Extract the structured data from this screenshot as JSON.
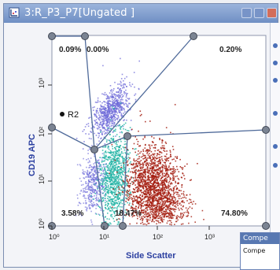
{
  "window": {
    "title": "3:R_P3_P7[Ungated ]"
  },
  "plot": {
    "y_axis_label": "CD19 APC",
    "x_axis_label": "Side Scatter",
    "x_ticks": [
      "10⁰",
      "10¹",
      "10²",
      "10³"
    ],
    "y_ticks": [
      "10⁰",
      "10¹",
      "10²",
      "10³"
    ],
    "region_label": "R2",
    "quadrants": {
      "top_left": "0.09%",
      "top_middle": "0.00%",
      "top_right": "0.20%",
      "bottom_left": "3.58%",
      "bottom_middle": "18.47%",
      "bottom_right": "74.80%"
    },
    "colors": {
      "purple": "#6f6bd8",
      "teal": "#1fb3a4",
      "red": "#a51f12",
      "axis_text": "#2b3fa0",
      "gate": "#4f6a9a"
    }
  },
  "subwindow": {
    "title": "Compe",
    "label": "Compe"
  }
}
